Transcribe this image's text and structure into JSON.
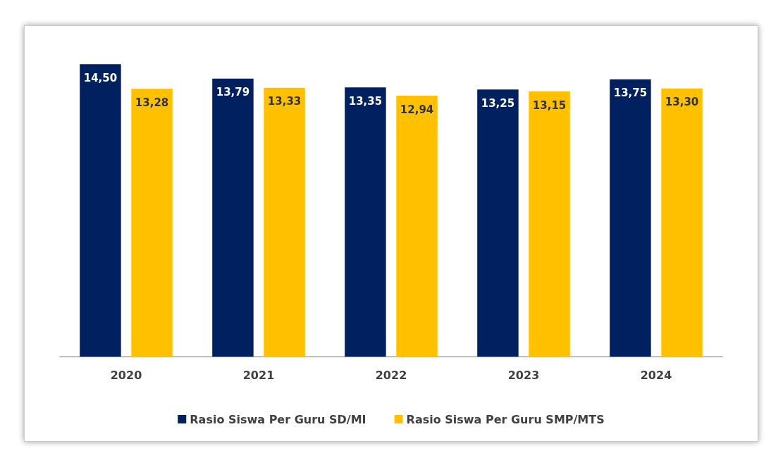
{
  "chart_data": {
    "type": "bar",
    "categories": [
      "2020",
      "2021",
      "2022",
      "2023",
      "2024"
    ],
    "series": [
      {
        "name": "Rasio Siswa Per Guru SD/MI",
        "color": "#002060",
        "values": [
          14.5,
          13.79,
          13.35,
          13.25,
          13.75
        ],
        "value_labels": [
          "14,50",
          "13,79",
          "13,35",
          "13,25",
          "13,75"
        ]
      },
      {
        "name": "Rasio Siswa Per Guru SMP/MTS",
        "color": "#ffc000",
        "values": [
          13.28,
          13.33,
          12.94,
          13.15,
          13.3
        ],
        "value_labels": [
          "13,28",
          "13,33",
          "12,94",
          "13,15",
          "13,30"
        ]
      }
    ],
    "legend": "bottom"
  }
}
